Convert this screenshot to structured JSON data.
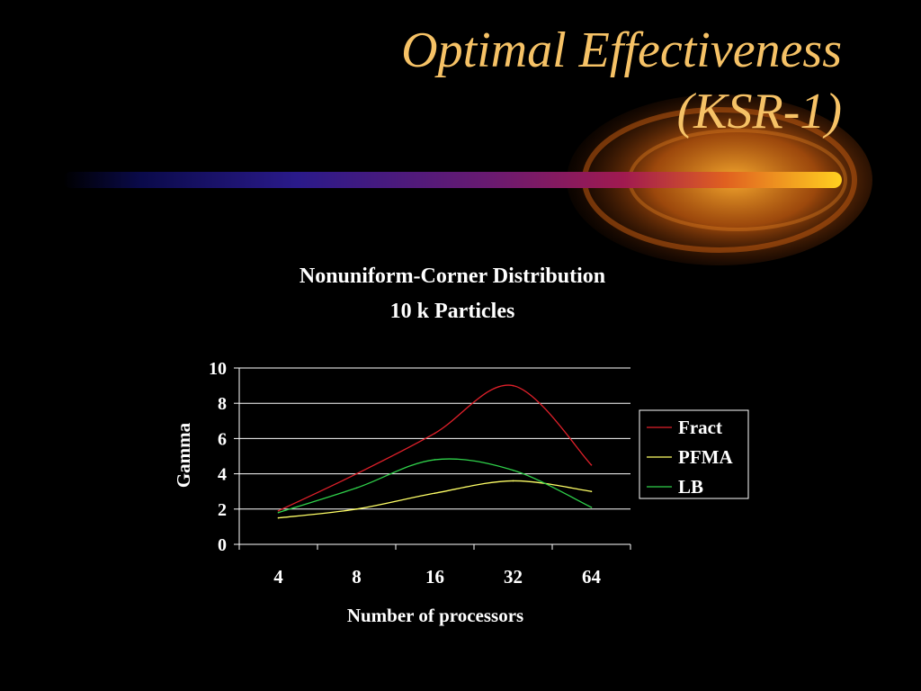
{
  "slide": {
    "title_line1": "Optimal Effectiveness",
    "title_line2": "(KSR-1)"
  },
  "colors": {
    "background": "#000000",
    "title": "#f6c266",
    "text": "#ffffff",
    "grid": "#ffffff"
  },
  "chart_data": {
    "type": "line",
    "title_line1": "Nonuniform-Corner Distribution",
    "title_line2": "10 k Particles",
    "xlabel": "Number of processors",
    "ylabel": "Gamma",
    "categories": [
      "4",
      "8",
      "16",
      "32",
      "64"
    ],
    "ylim": [
      0,
      10
    ],
    "yticks": [
      "0",
      "2",
      "4",
      "6",
      "8",
      "10"
    ],
    "grid": true,
    "legend_position": "right",
    "series": [
      {
        "name": "Fract",
        "color": "#e0202a",
        "values": [
          1.9,
          4.0,
          6.3,
          9.0,
          4.5
        ]
      },
      {
        "name": "PFMA",
        "color": "#ffff66",
        "values": [
          1.5,
          2.0,
          2.9,
          3.6,
          3.0
        ]
      },
      {
        "name": "LB",
        "color": "#2fd04a",
        "values": [
          1.8,
          3.2,
          4.8,
          4.2,
          2.1
        ]
      }
    ]
  }
}
